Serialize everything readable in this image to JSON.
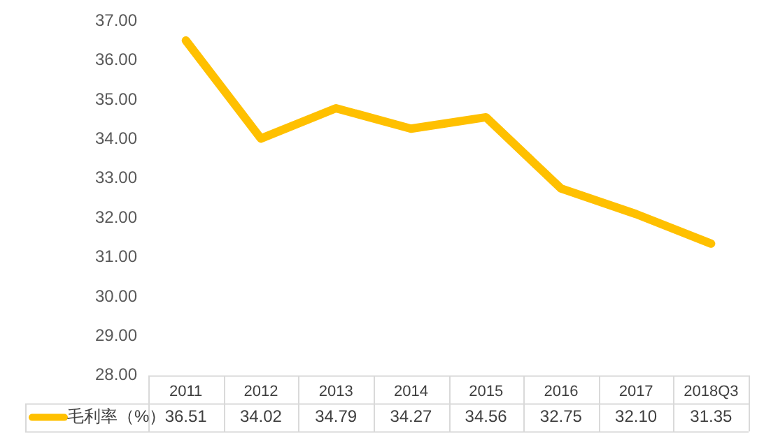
{
  "chart_data": {
    "type": "line",
    "categories": [
      "2011",
      "2012",
      "2013",
      "2014",
      "2015",
      "2016",
      "2017",
      "2018Q3"
    ],
    "series": [
      {
        "name": "毛利率（%）",
        "color": "#ffc000",
        "values": [
          36.51,
          34.02,
          34.79,
          34.27,
          34.56,
          32.75,
          32.1,
          31.35
        ],
        "value_labels": [
          "36.51",
          "34.02",
          "34.79",
          "34.27",
          "34.56",
          "32.75",
          "32.10",
          "31.35"
        ]
      }
    ],
    "ylim": [
      28,
      37
    ],
    "yticks": [
      {
        "value": 28,
        "label": "28.00"
      },
      {
        "value": 29,
        "label": "29.00"
      },
      {
        "value": 30,
        "label": "30.00"
      },
      {
        "value": 31,
        "label": "31.00"
      },
      {
        "value": 32,
        "label": "32.00"
      },
      {
        "value": 33,
        "label": "33.00"
      },
      {
        "value": 34,
        "label": "34.00"
      },
      {
        "value": 35,
        "label": "35.00"
      },
      {
        "value": 36,
        "label": "36.00"
      },
      {
        "value": 37,
        "label": "37.00"
      }
    ],
    "grid": false,
    "legend": "bottom",
    "marker": "none",
    "line_style": "solid"
  }
}
